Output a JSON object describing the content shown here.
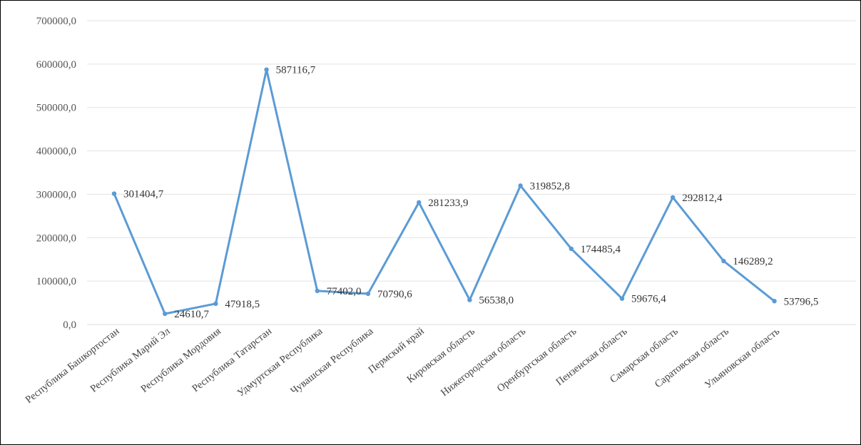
{
  "chart_data": {
    "type": "line",
    "categories": [
      "Республика Башкортостан",
      "Республика Марий Эл",
      "Республика Мордовия",
      "Республика Татарстан",
      "Удмуртская Республика",
      "Чувашская Республика",
      "Пермский край",
      "Кировская область",
      "Нижегородская область",
      "Оренбургская область",
      "Пензенская область",
      "Самарская область",
      "Саратовская область",
      "Ульяновская область"
    ],
    "values": [
      301404.7,
      24610.7,
      47918.5,
      587116.7,
      77402.0,
      70790.6,
      281233.9,
      56538.0,
      319852.8,
      174485.4,
      59676.4,
      292812.4,
      146289.2,
      53796.5
    ],
    "data_labels": [
      "301404,7",
      "24610,7",
      "47918,5",
      "587116,7",
      "77402,0",
      "70790,6",
      "281233,9",
      "56538,0",
      "319852,8",
      "174485,4",
      "59676,4",
      "292812,4",
      "146289,2",
      "53796,5"
    ],
    "y_ticks": [
      "0,0",
      "100000,0",
      "200000,0",
      "300000,0",
      "400000,0",
      "500000,0",
      "600000,0",
      "700000,0"
    ],
    "ylim": [
      0,
      700000
    ],
    "title": "",
    "xlabel": "",
    "ylabel": "",
    "grid": true,
    "legend": "none",
    "line_color": "#5b9bd5"
  }
}
